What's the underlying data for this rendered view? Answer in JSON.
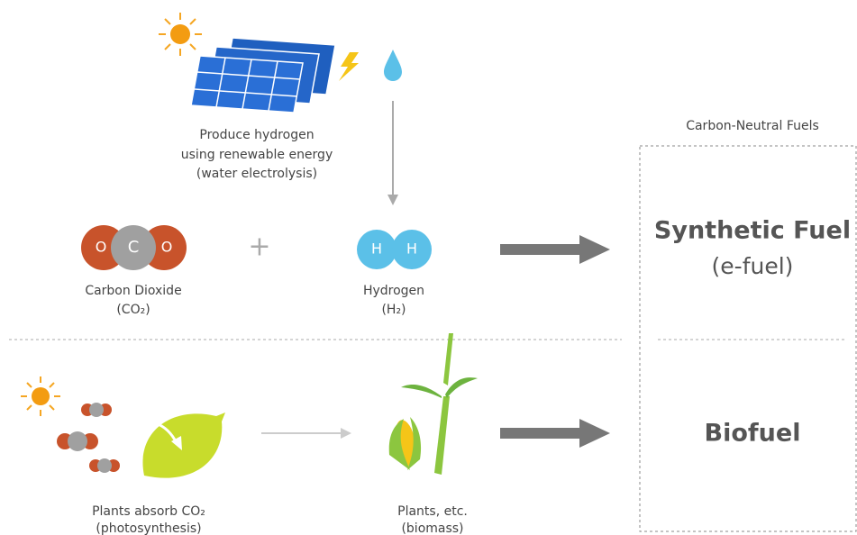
{
  "hydrogen_production": {
    "caption": [
      "Produce hydrogen",
      "using renewable energy",
      "(water electrolysis)"
    ]
  },
  "reactants": {
    "carbon_dioxide": {
      "atoms": [
        "O",
        "C",
        "O"
      ],
      "label": "Carbon Dioxide",
      "formula": "(CO₂)"
    },
    "operator": "+",
    "hydrogen": {
      "atoms": [
        "H",
        "H"
      ],
      "label": "Hydrogen",
      "formula": "(H₂)"
    }
  },
  "photosynthesis": {
    "label": "Plants absorb CO₂",
    "note": "(photosynthesis)"
  },
  "biomass": {
    "label": "Plants, etc.",
    "note": "(biomass)"
  },
  "fuels": {
    "title": "Carbon-Neutral Fuels",
    "synthetic": {
      "name": "Synthetic Fuel",
      "alias": "(e-fuel)"
    },
    "biofuel": {
      "name": "Biofuel"
    }
  }
}
